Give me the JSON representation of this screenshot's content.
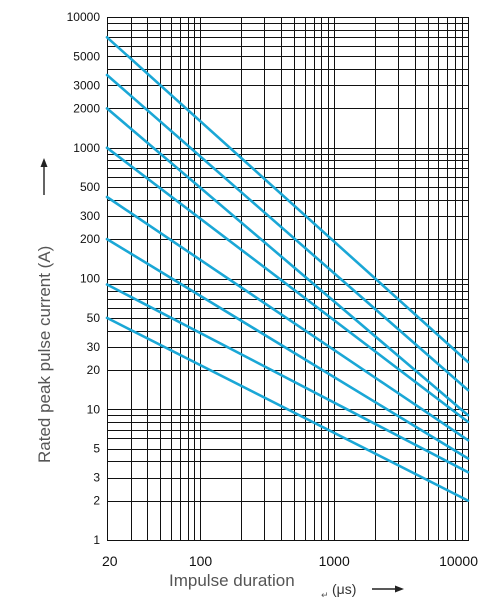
{
  "chart_data": {
    "type": "line",
    "xlabel": "Impulse duration",
    "xunit": "(μs)",
    "ylabel": "Rated peak pulse current (A)",
    "xscale": "log",
    "yscale": "log",
    "xlim": [
      20,
      10000
    ],
    "ylim": [
      1,
      10000
    ],
    "grid": true,
    "x_tick_labels": [
      "20",
      "100",
      "1000",
      "10000"
    ],
    "x_ticks": [
      20,
      100,
      1000,
      10000
    ],
    "y_tick_labels": [
      "10000",
      "5000",
      "3000",
      "2000",
      "1000",
      "500",
      "300",
      "200",
      "100",
      "50",
      "30",
      "20",
      "10",
      "5",
      "3",
      "2",
      "1"
    ],
    "y_ticks": [
      10000,
      5000,
      3000,
      2000,
      1000,
      500,
      300,
      200,
      100,
      50,
      30,
      20,
      10,
      5,
      3,
      2,
      1
    ],
    "series": [
      {
        "x": [
          20,
          10000
        ],
        "y": [
          7000,
          23
        ]
      },
      {
        "x": [
          20,
          10000
        ],
        "y": [
          3600,
          14
        ]
      },
      {
        "x": [
          20,
          10000
        ],
        "y": [
          2000,
          9
        ]
      },
      {
        "x": [
          20,
          10000
        ],
        "y": [
          1000,
          8
        ]
      },
      {
        "x": [
          20,
          10000
        ],
        "y": [
          420,
          5.8
        ]
      },
      {
        "x": [
          20,
          10000
        ],
        "y": [
          200,
          4.2
        ]
      },
      {
        "x": [
          20,
          10000
        ],
        "y": [
          90,
          3.3
        ]
      },
      {
        "x": [
          20,
          10000
        ],
        "y": [
          50,
          2
        ]
      }
    ]
  }
}
